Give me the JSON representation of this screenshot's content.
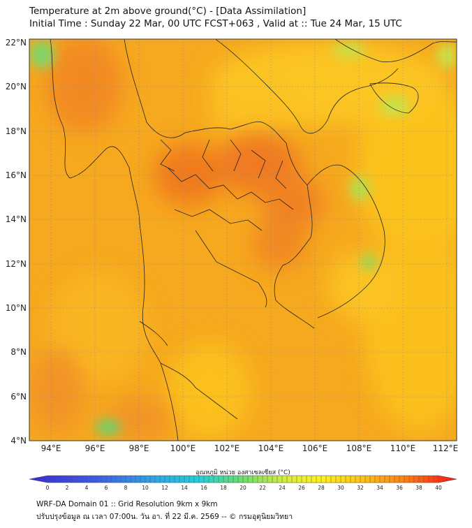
{
  "title_line1": "Temperature at 2m above ground(°C) - [Data Assimilation]",
  "title_line2": "Initial Time : Sunday 22 Mar, 00 UTC FCST+063 , Valid at :: Tue 24 Mar, 15 UTC",
  "lat_labels": [
    "22°N",
    "20°N",
    "18°N",
    "16°N",
    "14°N",
    "12°N",
    "10°N",
    "8°N",
    "6°N",
    "4°N"
  ],
  "lon_labels": [
    "94°E",
    "96°E",
    "98°E",
    "100°E",
    "102°E",
    "104°E",
    "106°E",
    "108°E",
    "110°E",
    "112°E"
  ],
  "colorbar": {
    "title": "อุณหภูมิ หน่วย องศาเซลเซียส (°C)",
    "ticks": [
      "0",
      "2",
      "4",
      "6",
      "8",
      "10",
      "12",
      "14",
      "16",
      "18",
      "20",
      "22",
      "24",
      "26",
      "28",
      "30",
      "32",
      "34",
      "36",
      "38",
      "40"
    ]
  },
  "footer_line1": "WRF-DA Domain 01 :: Grid Resolution 9km x 9km",
  "footer_line2": "ปรับปรุงข้อมูล ณ เวลา 07:00น. วัน อา. ที่ 22 มี.ค. 2569 -- © กรมอุตุนิยมวิทยา",
  "colors": {
    "background": "#f6a81e",
    "hot": "#f07a1f",
    "cool": "#6fd06a",
    "border": "#222222"
  }
}
